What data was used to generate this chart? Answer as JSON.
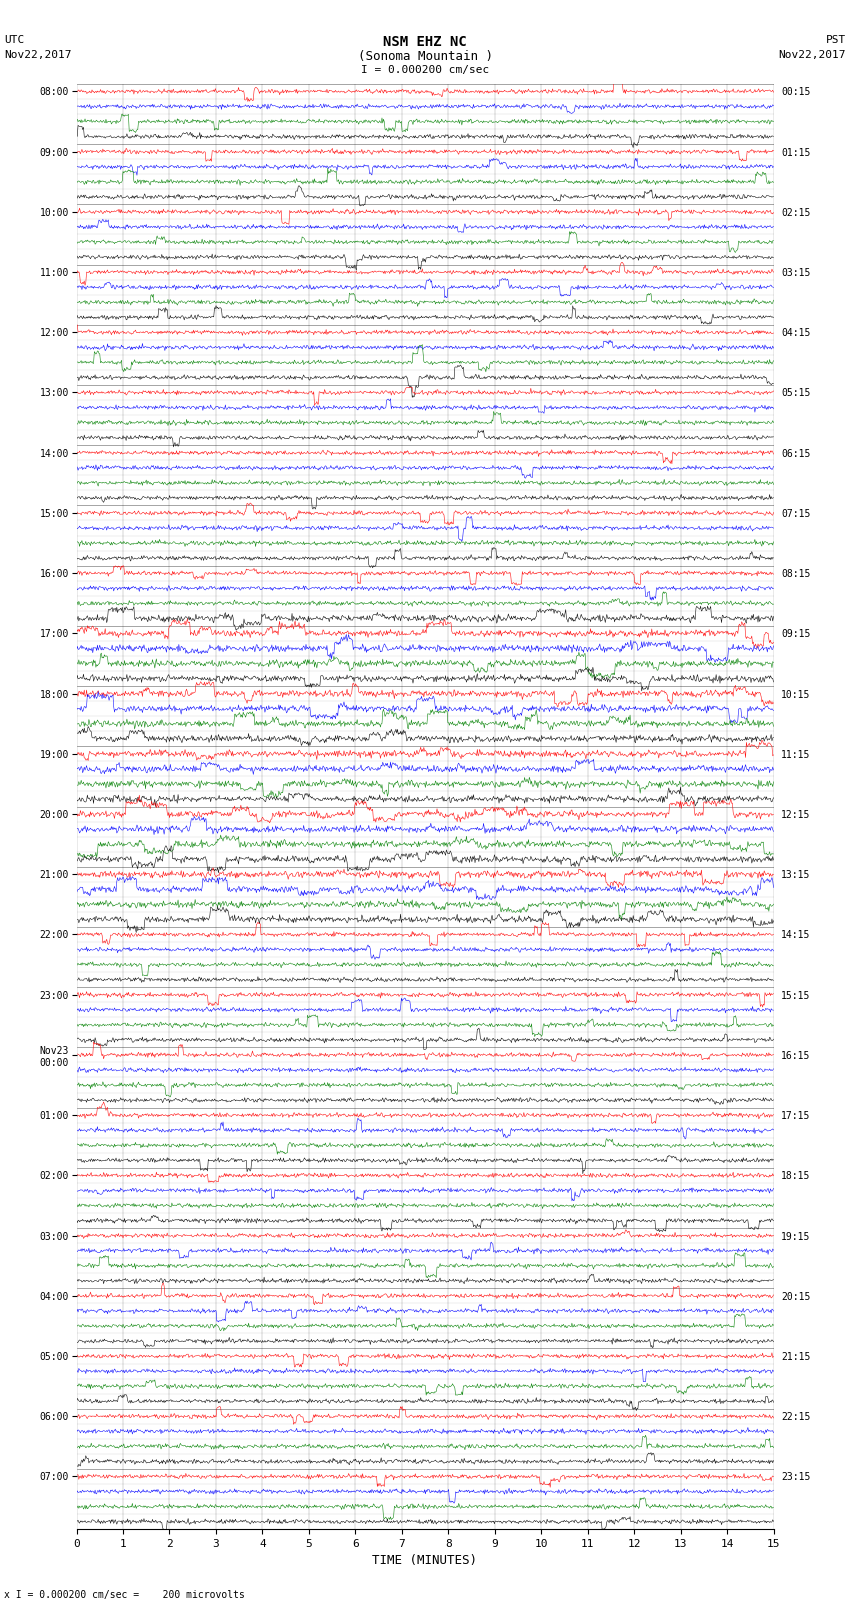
{
  "title_line1": "NSM EHZ NC",
  "title_line2": "(Sonoma Mountain )",
  "scale_label": "I = 0.000200 cm/sec",
  "bottom_label": "x I = 0.000200 cm/sec =    200 microvolts",
  "xlabel": "TIME (MINUTES)",
  "background_color": "#ffffff",
  "trace_colors": [
    "red",
    "blue",
    "green",
    "black"
  ],
  "xlim": [
    0,
    15
  ],
  "xticks": [
    0,
    1,
    2,
    3,
    4,
    5,
    6,
    7,
    8,
    9,
    10,
    11,
    12,
    13,
    14,
    15
  ],
  "num_rows": 96,
  "noise_scale": 0.18,
  "left_labels_utc": [
    "08:00",
    "",
    "",
    "",
    "09:00",
    "",
    "",
    "",
    "10:00",
    "",
    "",
    "",
    "11:00",
    "",
    "",
    "",
    "12:00",
    "",
    "",
    "",
    "13:00",
    "",
    "",
    "",
    "14:00",
    "",
    "",
    "",
    "15:00",
    "",
    "",
    "",
    "16:00",
    "",
    "",
    "",
    "17:00",
    "",
    "",
    "",
    "18:00",
    "",
    "",
    "",
    "19:00",
    "",
    "",
    "",
    "20:00",
    "",
    "",
    "",
    "21:00",
    "",
    "",
    "",
    "22:00",
    "",
    "",
    "",
    "23:00",
    "",
    "",
    "",
    "Nov23\n00:00",
    "",
    "",
    "",
    "01:00",
    "",
    "",
    "",
    "02:00",
    "",
    "",
    "",
    "03:00",
    "",
    "",
    "",
    "04:00",
    "",
    "",
    "",
    "05:00",
    "",
    "",
    "",
    "06:00",
    "",
    "",
    "",
    "07:00",
    "",
    "",
    ""
  ],
  "right_labels_pst": [
    "00:15",
    "",
    "",
    "",
    "01:15",
    "",
    "",
    "",
    "02:15",
    "",
    "",
    "",
    "03:15",
    "",
    "",
    "",
    "04:15",
    "",
    "",
    "",
    "05:15",
    "",
    "",
    "",
    "06:15",
    "",
    "",
    "",
    "07:15",
    "",
    "",
    "",
    "08:15",
    "",
    "",
    "",
    "09:15",
    "",
    "",
    "",
    "10:15",
    "",
    "",
    "",
    "11:15",
    "",
    "",
    "",
    "12:15",
    "",
    "",
    "",
    "13:15",
    "",
    "",
    "",
    "14:15",
    "",
    "",
    "",
    "15:15",
    "",
    "",
    "",
    "16:15",
    "",
    "",
    "",
    "17:15",
    "",
    "",
    "",
    "18:15",
    "",
    "",
    "",
    "19:15",
    "",
    "",
    "",
    "20:15",
    "",
    "",
    "",
    "21:15",
    "",
    "",
    "",
    "22:15",
    "",
    "",
    "",
    "23:15",
    "",
    "",
    ""
  ]
}
